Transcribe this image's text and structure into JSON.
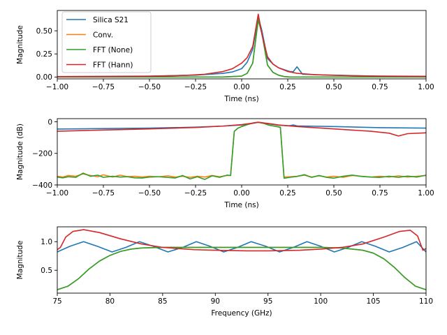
{
  "chart_data": [
    {
      "type": "line",
      "xlabel": "Time (ns)",
      "ylabel": "Magnitude",
      "xlim": [
        -1.0,
        1.0
      ],
      "ylim": [
        -0.02,
        0.72
      ],
      "xticks": [
        -1.0,
        -0.75,
        -0.5,
        -0.25,
        0.0,
        0.25,
        0.5,
        0.75,
        1.0
      ],
      "xtick_labels": [
        "−1.00",
        "−0.75",
        "−0.50",
        "−0.25",
        "0.00",
        "0.25",
        "0.50",
        "0.75",
        "1.00"
      ],
      "yticks": [
        0.0,
        0.25,
        0.5
      ],
      "ytick_labels": [
        "0.00",
        "0.25",
        "0.50"
      ],
      "legend": "top-left",
      "series": [
        {
          "name": "Silica S21",
          "color": "#1f77b4",
          "x": [
            -1.0,
            -0.5,
            -0.25,
            -0.1,
            -0.05,
            0.0,
            0.03,
            0.06,
            0.09,
            0.11,
            0.14,
            0.17,
            0.2,
            0.23,
            0.26,
            0.28,
            0.3,
            0.33,
            0.4,
            0.5,
            0.6,
            0.75,
            1.0
          ],
          "y": [
            0.005,
            0.01,
            0.02,
            0.04,
            0.055,
            0.09,
            0.16,
            0.3,
            0.65,
            0.5,
            0.2,
            0.14,
            0.1,
            0.08,
            0.06,
            0.058,
            0.11,
            0.03,
            0.025,
            0.02,
            0.015,
            0.01,
            0.008
          ]
        },
        {
          "name": "Conv.",
          "color": "#ff7f0e",
          "x": [
            -1.0,
            -0.5,
            -0.1,
            -0.05,
            0.0,
            0.03,
            0.06,
            0.09,
            0.11,
            0.14,
            0.17,
            0.2,
            0.23,
            0.26,
            0.5,
            1.0
          ],
          "y": [
            0.0,
            0.0,
            0.0,
            0.005,
            0.01,
            0.04,
            0.15,
            0.62,
            0.47,
            0.13,
            0.05,
            0.02,
            0.005,
            0.0,
            0.0,
            0.0
          ]
        },
        {
          "name": "FFT (None)",
          "color": "#2ca02c",
          "x": [
            -1.0,
            -0.5,
            -0.1,
            -0.05,
            0.0,
            0.03,
            0.06,
            0.09,
            0.11,
            0.14,
            0.17,
            0.2,
            0.23,
            0.26,
            0.5,
            1.0
          ],
          "y": [
            0.0,
            0.0,
            0.0,
            0.005,
            0.01,
            0.04,
            0.15,
            0.62,
            0.47,
            0.13,
            0.05,
            0.02,
            0.005,
            0.0,
            0.0,
            0.0
          ]
        },
        {
          "name": "FFT (Hann)",
          "color": "#d62728",
          "x": [
            -1.0,
            -0.75,
            -0.5,
            -0.3,
            -0.2,
            -0.1,
            -0.05,
            0.0,
            0.03,
            0.06,
            0.09,
            0.11,
            0.14,
            0.17,
            0.2,
            0.25,
            0.3,
            0.4,
            0.5,
            0.75,
            1.0
          ],
          "y": [
            0.003,
            0.004,
            0.008,
            0.018,
            0.03,
            0.06,
            0.09,
            0.15,
            0.21,
            0.33,
            0.68,
            0.46,
            0.22,
            0.14,
            0.1,
            0.06,
            0.04,
            0.025,
            0.018,
            0.009,
            0.006
          ]
        }
      ]
    },
    {
      "type": "line",
      "xlabel": "Time (ns)",
      "ylabel": "Magnitude (dB)",
      "xlim": [
        -1.0,
        1.0
      ],
      "ylim": [
        -400,
        20
      ],
      "xticks": [
        -1.0,
        -0.75,
        -0.5,
        -0.25,
        0.0,
        0.25,
        0.5,
        0.75,
        1.0
      ],
      "xtick_labels": [
        "−1.00",
        "−0.75",
        "−0.50",
        "−0.25",
        "0.00",
        "0.25",
        "0.50",
        "0.75",
        "1.00"
      ],
      "yticks": [
        -400,
        -200,
        0
      ],
      "ytick_labels": [
        "−400",
        "−200",
        "0"
      ],
      "series": [
        {
          "name": "Silica S21",
          "color": "#1f77b4",
          "x": [
            -1.0,
            -0.5,
            -0.25,
            -0.1,
            0.0,
            0.05,
            0.09,
            0.14,
            0.2,
            0.26,
            0.28,
            0.3,
            0.35,
            0.5,
            0.75,
            1.0
          ],
          "y": [
            -46,
            -40,
            -34,
            -27,
            -20,
            -12,
            -3,
            -12,
            -22,
            -25,
            -20,
            -26,
            -27,
            -30,
            -37,
            -40
          ]
        },
        {
          "name": "Conv.",
          "color": "#ff7f0e",
          "x": [
            -1.0,
            -0.97,
            -0.94,
            -0.9,
            -0.86,
            -0.82,
            -0.78,
            -0.75,
            -0.7,
            -0.66,
            -0.62,
            -0.58,
            -0.54,
            -0.5,
            -0.45,
            -0.4,
            -0.36,
            -0.32,
            -0.28,
            -0.24,
            -0.2,
            -0.16,
            -0.12,
            -0.08,
            -0.06,
            -0.04,
            -0.02,
            0.0,
            0.03,
            0.06,
            0.09,
            0.12,
            0.15,
            0.18,
            0.21,
            0.23,
            0.26,
            0.3,
            0.34,
            0.38,
            0.42,
            0.46,
            0.5,
            0.55,
            0.6,
            0.65,
            0.7,
            0.75,
            0.8,
            0.85,
            0.9,
            0.95,
            1.0
          ],
          "y": [
            -345,
            -350,
            -340,
            -345,
            -330,
            -340,
            -348,
            -336,
            -350,
            -338,
            -347,
            -345,
            -350,
            -345,
            -348,
            -342,
            -350,
            -345,
            -352,
            -345,
            -350,
            -340,
            -348,
            -340,
            -340,
            -60,
            -40,
            -30,
            -18,
            -8,
            -3,
            -10,
            -22,
            -28,
            -35,
            -350,
            -348,
            -345,
            -338,
            -350,
            -342,
            -350,
            -345,
            -352,
            -340,
            -345,
            -350,
            -345,
            -350,
            -342,
            -350,
            -345,
            -340
          ]
        },
        {
          "name": "FFT (None)",
          "color": "#2ca02c",
          "x": [
            -1.0,
            -0.97,
            -0.94,
            -0.9,
            -0.86,
            -0.82,
            -0.78,
            -0.75,
            -0.7,
            -0.66,
            -0.62,
            -0.58,
            -0.54,
            -0.5,
            -0.45,
            -0.4,
            -0.36,
            -0.32,
            -0.28,
            -0.24,
            -0.2,
            -0.16,
            -0.12,
            -0.08,
            -0.06,
            -0.04,
            -0.02,
            0.0,
            0.03,
            0.06,
            0.09,
            0.12,
            0.15,
            0.18,
            0.21,
            0.23,
            0.26,
            0.3,
            0.34,
            0.38,
            0.42,
            0.46,
            0.5,
            0.55,
            0.6,
            0.65,
            0.7,
            0.75,
            0.8,
            0.85,
            0.9,
            0.95,
            1.0
          ],
          "y": [
            -350,
            -355,
            -348,
            -352,
            -325,
            -345,
            -338,
            -352,
            -345,
            -350,
            -348,
            -355,
            -356,
            -350,
            -348,
            -352,
            -356,
            -340,
            -362,
            -348,
            -365,
            -342,
            -352,
            -338,
            -340,
            -60,
            -40,
            -30,
            -18,
            -8,
            -3,
            -10,
            -22,
            -28,
            -35,
            -358,
            -352,
            -346,
            -335,
            -352,
            -340,
            -352,
            -357,
            -345,
            -338,
            -346,
            -350,
            -352,
            -345,
            -352,
            -344,
            -350,
            -338
          ]
        },
        {
          "name": "FFT (Hann)",
          "color": "#d62728",
          "x": [
            -1.0,
            -0.75,
            -0.5,
            -0.25,
            -0.1,
            0.0,
            0.05,
            0.09,
            0.14,
            0.2,
            0.3,
            0.5,
            0.7,
            0.8,
            0.85,
            0.9,
            1.0
          ],
          "y": [
            -60,
            -52,
            -45,
            -36,
            -27,
            -18,
            -10,
            -3,
            -10,
            -20,
            -30,
            -45,
            -60,
            -72,
            -90,
            -75,
            -70
          ]
        }
      ]
    },
    {
      "type": "line",
      "xlabel": "Frequency (GHz)",
      "ylabel": "Magnitude",
      "xlim": [
        75,
        110
      ],
      "ylim": [
        0.1,
        1.26
      ],
      "xticks": [
        75,
        80,
        85,
        90,
        95,
        100,
        105,
        110
      ],
      "xtick_labels": [
        "75",
        "80",
        "85",
        "90",
        "95",
        "100",
        "105",
        "110"
      ],
      "yticks": [
        0.5,
        1.0
      ],
      "ytick_labels": [
        "0.5",
        "1.0"
      ],
      "series": [
        {
          "name": "Silica S21",
          "color": "#1f77b4",
          "x": [
            75,
            76.2,
            77.5,
            78.8,
            80.2,
            81.5,
            82.8,
            84.1,
            85.5,
            86.9,
            88.2,
            89.5,
            90.8,
            92.1,
            93.4,
            94.8,
            96.1,
            97.4,
            98.7,
            100,
            101.3,
            102.6,
            103.9,
            105.2,
            106.5,
            107.8,
            109.1,
            110
          ],
          "y": [
            0.82,
            0.92,
            1.0,
            0.92,
            0.82,
            0.9,
            1.0,
            0.92,
            0.82,
            0.9,
            1.0,
            0.92,
            0.82,
            0.9,
            1.0,
            0.92,
            0.82,
            0.9,
            1.0,
            0.92,
            0.82,
            0.9,
            1.0,
            0.92,
            0.82,
            0.9,
            1.0,
            0.82
          ]
        },
        {
          "name": "Conv.",
          "color": "#ff7f0e",
          "x": [
            75,
            76,
            77,
            78,
            79,
            80,
            81,
            82,
            83,
            85,
            90,
            95,
            100,
            102,
            104,
            105,
            106,
            107,
            108,
            109,
            110
          ],
          "y": [
            0.16,
            0.22,
            0.35,
            0.52,
            0.66,
            0.76,
            0.83,
            0.87,
            0.89,
            0.9,
            0.9,
            0.9,
            0.9,
            0.89,
            0.85,
            0.8,
            0.7,
            0.55,
            0.37,
            0.22,
            0.16
          ]
        },
        {
          "name": "FFT (None)",
          "color": "#2ca02c",
          "x": [
            75,
            76,
            77,
            78,
            79,
            80,
            81,
            82,
            83,
            85,
            90,
            95,
            100,
            102,
            104,
            105,
            106,
            107,
            108,
            109,
            110
          ],
          "y": [
            0.16,
            0.22,
            0.35,
            0.52,
            0.66,
            0.76,
            0.83,
            0.87,
            0.89,
            0.9,
            0.9,
            0.9,
            0.9,
            0.89,
            0.85,
            0.8,
            0.7,
            0.55,
            0.37,
            0.22,
            0.16
          ]
        },
        {
          "name": "FFT (Hann)",
          "color": "#d62728",
          "x": [
            75,
            75.3,
            75.8,
            76.5,
            77.5,
            79,
            81,
            83,
            85,
            88,
            90,
            93,
            95,
            98,
            100,
            102,
            104,
            106,
            107.5,
            108.5,
            109.2,
            109.7,
            110
          ],
          "y": [
            0.86,
            0.9,
            1.08,
            1.18,
            1.21,
            1.16,
            1.05,
            0.96,
            0.9,
            0.86,
            0.85,
            0.84,
            0.84,
            0.85,
            0.87,
            0.9,
            0.96,
            1.08,
            1.18,
            1.2,
            1.1,
            0.85,
            0.88
          ]
        }
      ]
    }
  ]
}
